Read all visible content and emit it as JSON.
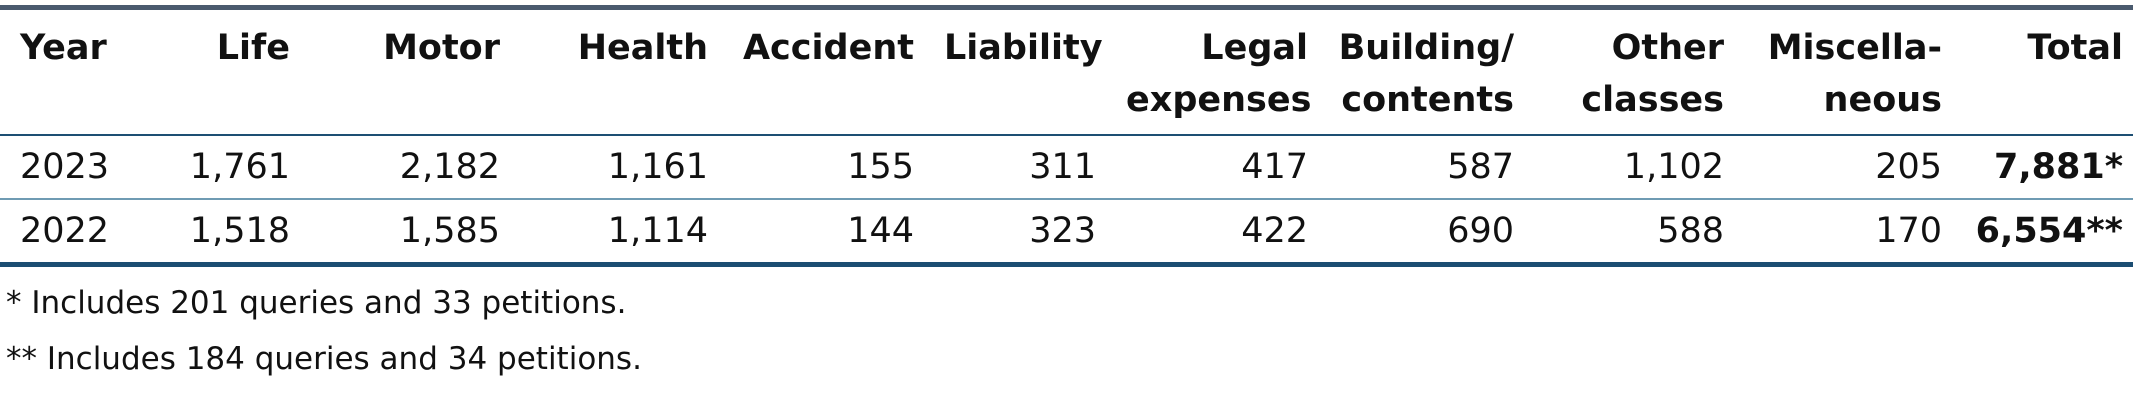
{
  "table": {
    "headers": [
      {
        "key": "year",
        "line1": "Year",
        "line2": ""
      },
      {
        "key": "life",
        "line1": "Life",
        "line2": ""
      },
      {
        "key": "motor",
        "line1": "Motor",
        "line2": ""
      },
      {
        "key": "health",
        "line1": "Health",
        "line2": ""
      },
      {
        "key": "accident",
        "line1": "Accident",
        "line2": ""
      },
      {
        "key": "liability",
        "line1": "Liability",
        "line2": ""
      },
      {
        "key": "legal",
        "line1": "Legal",
        "line2": "expenses"
      },
      {
        "key": "building",
        "line1": "Building/",
        "line2": "contents"
      },
      {
        "key": "other",
        "line1": "Other",
        "line2": "classes"
      },
      {
        "key": "misc",
        "line1": "Miscella-",
        "line2": "neous"
      },
      {
        "key": "total",
        "line1": "Total",
        "line2": ""
      }
    ],
    "rows": [
      {
        "year": "2023",
        "cells": [
          "1,761",
          "2,182",
          "1,161",
          "155",
          "311",
          "417",
          "587",
          "1,102",
          "205"
        ],
        "total": "7,881*"
      },
      {
        "year": "2022",
        "cells": [
          "1,518",
          "1,585",
          "1,114",
          "144",
          "323",
          "422",
          "690",
          "588",
          "170"
        ],
        "total": "6,554**"
      }
    ]
  },
  "footnotes": [
    "* Includes 201 queries and 33 petitions.",
    "** Includes 184 queries and 34 petitions."
  ],
  "colors": {
    "top_rule": "#4a5a6e",
    "header_rule": "#1d4f73",
    "row_rule": "#6f9bb3",
    "bottom_rule": "#1b4d72"
  }
}
